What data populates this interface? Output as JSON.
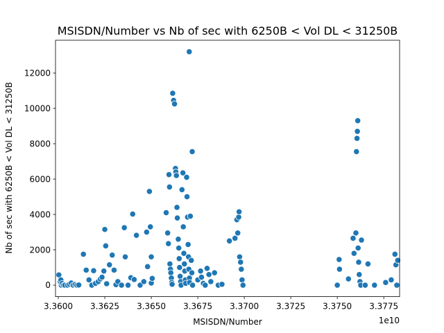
{
  "chart_data": {
    "type": "scatter",
    "title": "MSISDN/Number vs Nb of sec with 6250B < Vol DL < 31250B",
    "xlabel": "MSISDN/Number",
    "ylabel": "Nb of sec with 6250B < Vol DL < 31250B",
    "x_offset_label": "1e10",
    "xlim": [
      3.35985,
      3.37835
    ],
    "ylim": [
      -650,
      13850
    ],
    "xticks": [
      3.36,
      3.3625,
      3.365,
      3.3675,
      3.37,
      3.3725,
      3.375,
      3.3775
    ],
    "xtick_labels": [
      "3.3600",
      "3.3625",
      "3.3650",
      "3.3675",
      "3.3700",
      "3.3725",
      "3.3750",
      "3.3775"
    ],
    "yticks": [
      0,
      2000,
      4000,
      6000,
      8000,
      10000,
      12000
    ],
    "ytick_labels": [
      "0",
      "2000",
      "4000",
      "6000",
      "8000",
      "10000",
      "12000"
    ],
    "grid": false,
    "color": "#1f77b4",
    "points": [
      [
        3.36003,
        580
      ],
      [
        3.3601,
        200
      ],
      [
        3.36014,
        300
      ],
      [
        3.36016,
        0
      ],
      [
        3.3602,
        100
      ],
      [
        3.36028,
        0
      ],
      [
        3.36035,
        0
      ],
      [
        3.3605,
        0
      ],
      [
        3.3606,
        50
      ],
      [
        3.3607,
        120
      ],
      [
        3.3608,
        0
      ],
      [
        3.3609,
        40
      ],
      [
        3.361,
        0
      ],
      [
        3.3611,
        10
      ],
      [
        3.36135,
        1750
      ],
      [
        3.3615,
        850
      ],
      [
        3.36165,
        300
      ],
      [
        3.3618,
        0
      ],
      [
        3.3619,
        820
      ],
      [
        3.362,
        100
      ],
      [
        3.36215,
        200
      ],
      [
        3.36226,
        350
      ],
      [
        3.36235,
        450
      ],
      [
        3.36245,
        800
      ],
      [
        3.3625,
        3150
      ],
      [
        3.36255,
        2220
      ],
      [
        3.3626,
        80
      ],
      [
        3.36275,
        1150
      ],
      [
        3.3629,
        1700
      ],
      [
        3.363,
        850
      ],
      [
        3.3631,
        30
      ],
      [
        3.3632,
        200
      ],
      [
        3.3634,
        0
      ],
      [
        3.36355,
        3250
      ],
      [
        3.3636,
        1600
      ],
      [
        3.36375,
        0
      ],
      [
        3.3639,
        420
      ],
      [
        3.364,
        4020
      ],
      [
        3.36408,
        320
      ],
      [
        3.3642,
        2820
      ],
      [
        3.3644,
        0
      ],
      [
        3.3646,
        200
      ],
      [
        3.36475,
        3000
      ],
      [
        3.3648,
        1050
      ],
      [
        3.3649,
        5300
      ],
      [
        3.36495,
        3300
      ],
      [
        3.365,
        1600
      ],
      [
        3.365,
        120
      ],
      [
        3.36505,
        380
      ],
      [
        3.3658,
        4100
      ],
      [
        3.36588,
        2950
      ],
      [
        3.36592,
        2350
      ],
      [
        3.36595,
        6250
      ],
      [
        3.36598,
        5550
      ],
      [
        3.366,
        1200
      ],
      [
        3.36603,
        900
      ],
      [
        3.36605,
        700
      ],
      [
        3.36608,
        400
      ],
      [
        3.3661,
        150
      ],
      [
        3.36612,
        50
      ],
      [
        3.36615,
        10850
      ],
      [
        3.3662,
        10450
      ],
      [
        3.36625,
        10250
      ],
      [
        3.3663,
        6600
      ],
      [
        3.36632,
        6400
      ],
      [
        3.36635,
        6200
      ],
      [
        3.36638,
        4400
      ],
      [
        3.3664,
        3800
      ],
      [
        3.36645,
        2600
      ],
      [
        3.36648,
        2100
      ],
      [
        3.3665,
        1500
      ],
      [
        3.36652,
        1000
      ],
      [
        3.36655,
        500
      ],
      [
        3.36658,
        200
      ],
      [
        3.3666,
        0
      ],
      [
        3.36665,
        5400
      ],
      [
        3.3667,
        6350
      ],
      [
        3.36672,
        3300
      ],
      [
        3.36675,
        1800
      ],
      [
        3.36678,
        1200
      ],
      [
        3.3668,
        800
      ],
      [
        3.36683,
        300
      ],
      [
        3.36685,
        100
      ],
      [
        3.3669,
        6100
      ],
      [
        3.36692,
        5000
      ],
      [
        3.36695,
        3850
      ],
      [
        3.36698,
        2300
      ],
      [
        3.367,
        1600
      ],
      [
        3.36702,
        900
      ],
      [
        3.36704,
        13200
      ],
      [
        3.36705,
        400
      ],
      [
        3.36706,
        150
      ],
      [
        3.3671,
        3900
      ],
      [
        3.36715,
        1400
      ],
      [
        3.36718,
        700
      ],
      [
        3.3672,
        7550
      ],
      [
        3.36722,
        0
      ],
      [
        3.3675,
        300
      ],
      [
        3.36765,
        800
      ],
      [
        3.3677,
        450
      ],
      [
        3.3678,
        100
      ],
      [
        3.3679,
        0
      ],
      [
        3.368,
        950
      ],
      [
        3.3681,
        600
      ],
      [
        3.3682,
        200
      ],
      [
        3.3684,
        700
      ],
      [
        3.3686,
        0
      ],
      [
        3.3688,
        50
      ],
      [
        3.3692,
        2500
      ],
      [
        3.3695,
        2650
      ],
      [
        3.3696,
        3700
      ],
      [
        3.36965,
        2950
      ],
      [
        3.3697,
        3850
      ],
      [
        3.36972,
        4150
      ],
      [
        3.36975,
        1600
      ],
      [
        3.3698,
        1300
      ],
      [
        3.36984,
        900
      ],
      [
        3.36988,
        300
      ],
      [
        3.36993,
        0
      ],
      [
        3.375,
        0
      ],
      [
        3.3751,
        1450
      ],
      [
        3.37512,
        900
      ],
      [
        3.3756,
        350
      ],
      [
        3.37585,
        2650
      ],
      [
        3.3759,
        1800
      ],
      [
        3.376,
        2950
      ],
      [
        3.37603,
        7550
      ],
      [
        3.37606,
        8300
      ],
      [
        3.37608,
        8700
      ],
      [
        3.3761,
        9300
      ],
      [
        3.37612,
        2100
      ],
      [
        3.37615,
        1300
      ],
      [
        3.37618,
        600
      ],
      [
        3.37622,
        200
      ],
      [
        3.37626,
        0
      ],
      [
        3.3763,
        2550
      ],
      [
        3.3765,
        0
      ],
      [
        3.37665,
        1200
      ],
      [
        3.377,
        0
      ],
      [
        3.3776,
        150
      ],
      [
        3.3779,
        300
      ],
      [
        3.3781,
        1750
      ],
      [
        3.37815,
        1150
      ],
      [
        3.3782,
        0
      ],
      [
        3.37825,
        1400
      ]
    ]
  }
}
